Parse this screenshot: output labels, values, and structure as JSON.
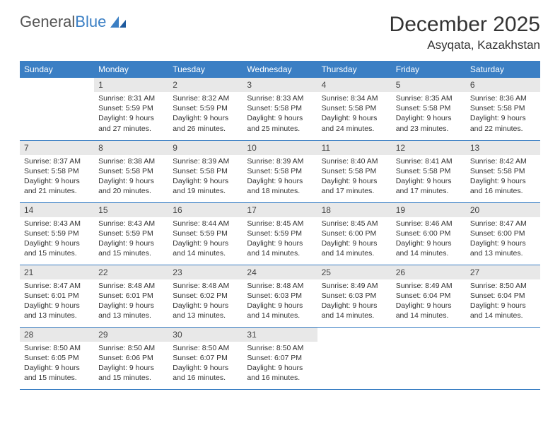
{
  "brand": {
    "part1": "General",
    "part2": "Blue"
  },
  "title": "December 2025",
  "location": "Asyqata, Kazakhstan",
  "colors": {
    "header_bg": "#3b7fc4",
    "header_text": "#ffffff",
    "daynum_bg": "#e8e8e8",
    "border": "#3b7fc4",
    "body_text": "#333333",
    "page_bg": "#ffffff"
  },
  "typography": {
    "title_fontsize": 30,
    "location_fontsize": 17,
    "dayheader_fontsize": 12,
    "cell_fontsize": 10.5
  },
  "day_headers": [
    "Sunday",
    "Monday",
    "Tuesday",
    "Wednesday",
    "Thursday",
    "Friday",
    "Saturday"
  ],
  "weeks": [
    [
      null,
      {
        "n": "1",
        "sr": "Sunrise: 8:31 AM",
        "ss": "Sunset: 5:59 PM",
        "d1": "Daylight: 9 hours",
        "d2": "and 27 minutes."
      },
      {
        "n": "2",
        "sr": "Sunrise: 8:32 AM",
        "ss": "Sunset: 5:59 PM",
        "d1": "Daylight: 9 hours",
        "d2": "and 26 minutes."
      },
      {
        "n": "3",
        "sr": "Sunrise: 8:33 AM",
        "ss": "Sunset: 5:58 PM",
        "d1": "Daylight: 9 hours",
        "d2": "and 25 minutes."
      },
      {
        "n": "4",
        "sr": "Sunrise: 8:34 AM",
        "ss": "Sunset: 5:58 PM",
        "d1": "Daylight: 9 hours",
        "d2": "and 24 minutes."
      },
      {
        "n": "5",
        "sr": "Sunrise: 8:35 AM",
        "ss": "Sunset: 5:58 PM",
        "d1": "Daylight: 9 hours",
        "d2": "and 23 minutes."
      },
      {
        "n": "6",
        "sr": "Sunrise: 8:36 AM",
        "ss": "Sunset: 5:58 PM",
        "d1": "Daylight: 9 hours",
        "d2": "and 22 minutes."
      }
    ],
    [
      {
        "n": "7",
        "sr": "Sunrise: 8:37 AM",
        "ss": "Sunset: 5:58 PM",
        "d1": "Daylight: 9 hours",
        "d2": "and 21 minutes."
      },
      {
        "n": "8",
        "sr": "Sunrise: 8:38 AM",
        "ss": "Sunset: 5:58 PM",
        "d1": "Daylight: 9 hours",
        "d2": "and 20 minutes."
      },
      {
        "n": "9",
        "sr": "Sunrise: 8:39 AM",
        "ss": "Sunset: 5:58 PM",
        "d1": "Daylight: 9 hours",
        "d2": "and 19 minutes."
      },
      {
        "n": "10",
        "sr": "Sunrise: 8:39 AM",
        "ss": "Sunset: 5:58 PM",
        "d1": "Daylight: 9 hours",
        "d2": "and 18 minutes."
      },
      {
        "n": "11",
        "sr": "Sunrise: 8:40 AM",
        "ss": "Sunset: 5:58 PM",
        "d1": "Daylight: 9 hours",
        "d2": "and 17 minutes."
      },
      {
        "n": "12",
        "sr": "Sunrise: 8:41 AM",
        "ss": "Sunset: 5:58 PM",
        "d1": "Daylight: 9 hours",
        "d2": "and 17 minutes."
      },
      {
        "n": "13",
        "sr": "Sunrise: 8:42 AM",
        "ss": "Sunset: 5:58 PM",
        "d1": "Daylight: 9 hours",
        "d2": "and 16 minutes."
      }
    ],
    [
      {
        "n": "14",
        "sr": "Sunrise: 8:43 AM",
        "ss": "Sunset: 5:59 PM",
        "d1": "Daylight: 9 hours",
        "d2": "and 15 minutes."
      },
      {
        "n": "15",
        "sr": "Sunrise: 8:43 AM",
        "ss": "Sunset: 5:59 PM",
        "d1": "Daylight: 9 hours",
        "d2": "and 15 minutes."
      },
      {
        "n": "16",
        "sr": "Sunrise: 8:44 AM",
        "ss": "Sunset: 5:59 PM",
        "d1": "Daylight: 9 hours",
        "d2": "and 14 minutes."
      },
      {
        "n": "17",
        "sr": "Sunrise: 8:45 AM",
        "ss": "Sunset: 5:59 PM",
        "d1": "Daylight: 9 hours",
        "d2": "and 14 minutes."
      },
      {
        "n": "18",
        "sr": "Sunrise: 8:45 AM",
        "ss": "Sunset: 6:00 PM",
        "d1": "Daylight: 9 hours",
        "d2": "and 14 minutes."
      },
      {
        "n": "19",
        "sr": "Sunrise: 8:46 AM",
        "ss": "Sunset: 6:00 PM",
        "d1": "Daylight: 9 hours",
        "d2": "and 14 minutes."
      },
      {
        "n": "20",
        "sr": "Sunrise: 8:47 AM",
        "ss": "Sunset: 6:00 PM",
        "d1": "Daylight: 9 hours",
        "d2": "and 13 minutes."
      }
    ],
    [
      {
        "n": "21",
        "sr": "Sunrise: 8:47 AM",
        "ss": "Sunset: 6:01 PM",
        "d1": "Daylight: 9 hours",
        "d2": "and 13 minutes."
      },
      {
        "n": "22",
        "sr": "Sunrise: 8:48 AM",
        "ss": "Sunset: 6:01 PM",
        "d1": "Daylight: 9 hours",
        "d2": "and 13 minutes."
      },
      {
        "n": "23",
        "sr": "Sunrise: 8:48 AM",
        "ss": "Sunset: 6:02 PM",
        "d1": "Daylight: 9 hours",
        "d2": "and 13 minutes."
      },
      {
        "n": "24",
        "sr": "Sunrise: 8:48 AM",
        "ss": "Sunset: 6:03 PM",
        "d1": "Daylight: 9 hours",
        "d2": "and 14 minutes."
      },
      {
        "n": "25",
        "sr": "Sunrise: 8:49 AM",
        "ss": "Sunset: 6:03 PM",
        "d1": "Daylight: 9 hours",
        "d2": "and 14 minutes."
      },
      {
        "n": "26",
        "sr": "Sunrise: 8:49 AM",
        "ss": "Sunset: 6:04 PM",
        "d1": "Daylight: 9 hours",
        "d2": "and 14 minutes."
      },
      {
        "n": "27",
        "sr": "Sunrise: 8:50 AM",
        "ss": "Sunset: 6:04 PM",
        "d1": "Daylight: 9 hours",
        "d2": "and 14 minutes."
      }
    ],
    [
      {
        "n": "28",
        "sr": "Sunrise: 8:50 AM",
        "ss": "Sunset: 6:05 PM",
        "d1": "Daylight: 9 hours",
        "d2": "and 15 minutes."
      },
      {
        "n": "29",
        "sr": "Sunrise: 8:50 AM",
        "ss": "Sunset: 6:06 PM",
        "d1": "Daylight: 9 hours",
        "d2": "and 15 minutes."
      },
      {
        "n": "30",
        "sr": "Sunrise: 8:50 AM",
        "ss": "Sunset: 6:07 PM",
        "d1": "Daylight: 9 hours",
        "d2": "and 16 minutes."
      },
      {
        "n": "31",
        "sr": "Sunrise: 8:50 AM",
        "ss": "Sunset: 6:07 PM",
        "d1": "Daylight: 9 hours",
        "d2": "and 16 minutes."
      },
      null,
      null,
      null
    ]
  ]
}
